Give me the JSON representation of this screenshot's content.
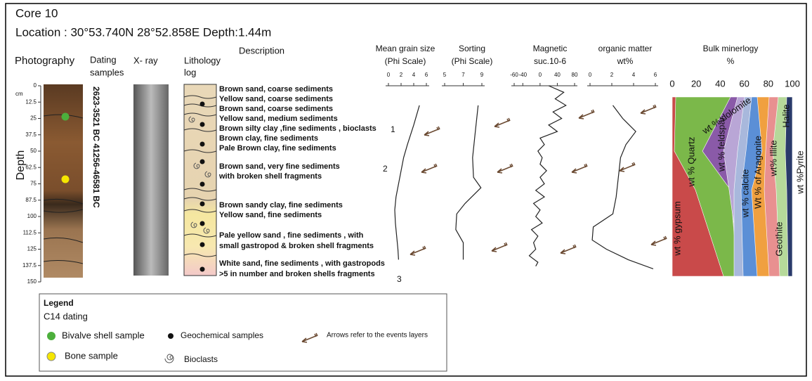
{
  "header": {
    "title": "Core 10",
    "location": "Location : 30°53.740N 28°52.858E  Depth:1.44m"
  },
  "columns": {
    "photography": "Photography",
    "dating": [
      "Dating",
      "samples"
    ],
    "xray": "X- ray",
    "lithology": [
      "Lithology",
      "log"
    ],
    "description": "Description"
  },
  "depth_axis": {
    "label": "Depth",
    "unit": "cm",
    "ticks": [
      0,
      12.5,
      25,
      37.5,
      50,
      62.5,
      75,
      87.5,
      100,
      112.5,
      125,
      137.5,
      150
    ]
  },
  "dating": [
    "2623-3521 BC",
    "41256-46581 BC"
  ],
  "descriptions": [
    "Brown sand, coarse sediments",
    "Yellow sand, coarse sediments",
    "Brown sand, coarse sediments",
    "Yellow sand, medium sediments",
    "Brown silty clay ,fine sediments , bioclasts",
    "Brown clay, fine sediments",
    "Pale Brown clay, fine sediments",
    "Brown sand, very fine sediments",
    "with broken  shell fragments",
    "Brown sandy clay, fine sediments",
    "Yellow sand, fine sediments",
    "Pale yellow sand , fine sediments , with",
    "small gastropod & broken shell fragments",
    "White sand, fine sediments , with gastropods",
    ">5 in number and broken shells fragments"
  ],
  "events": [
    "1",
    "2",
    "3"
  ],
  "panels": [
    {
      "title": [
        "Mean grain size",
        "(Phi Scale)"
      ],
      "ticks": [
        0,
        2,
        4,
        6
      ],
      "xlim": [
        0,
        6
      ],
      "depth": [
        15,
        30,
        45,
        55,
        65,
        75,
        85,
        95,
        105,
        115,
        125,
        133
      ],
      "values": [
        4.9,
        4.0,
        3.0,
        2.4,
        2.0,
        1.6,
        1.2,
        1.0,
        1.1,
        1.3,
        1.5,
        1.6
      ]
    },
    {
      "title": [
        "Sorting",
        "(Phi Scale)"
      ],
      "ticks": [
        5,
        7,
        9
      ],
      "xlim": [
        5,
        9
      ],
      "depth": [
        15,
        35,
        55,
        70,
        78,
        90,
        98,
        110,
        120,
        133
      ],
      "values": [
        8.6,
        8.3,
        8.0,
        8.1,
        8.9,
        7.2,
        6.3,
        6.2,
        7.0,
        7.0
      ]
    },
    {
      "title": [
        "Magnetic",
        "suc.10-6"
      ],
      "ticks": [
        -60,
        -40,
        0,
        40,
        80
      ],
      "xlim": [
        -60,
        80
      ],
      "depth": [
        0,
        5,
        10,
        15,
        20,
        25,
        30,
        35,
        40,
        45,
        50,
        55,
        60,
        65,
        70,
        75,
        80,
        85,
        90,
        95,
        100,
        105,
        110,
        115,
        120,
        125,
        130,
        135,
        138
      ],
      "values": [
        20,
        55,
        35,
        60,
        30,
        50,
        20,
        40,
        0,
        10,
        -5,
        5,
        0,
        15,
        0,
        10,
        -10,
        10,
        -15,
        0,
        -10,
        5,
        -20,
        -5,
        -15,
        -10,
        -25,
        -5,
        -10
      ]
    },
    {
      "title": [
        "organic matter",
        "wt%"
      ],
      "ticks": [
        0,
        2,
        4,
        6
      ],
      "xlim": [
        0,
        6
      ],
      "depth": [
        15,
        25,
        35,
        45,
        55,
        70,
        85,
        98,
        108,
        118,
        125,
        133,
        140
      ],
      "values": [
        2.1,
        3.0,
        4.2,
        3.3,
        2.8,
        2.6,
        2.4,
        2.1,
        0.3,
        0.2,
        1.5,
        3.5,
        5.8
      ]
    }
  ],
  "mineralogy": {
    "title": [
      "Bulk minerlogy",
      "%"
    ],
    "ticks": [
      0,
      20,
      40,
      60,
      80,
      100
    ],
    "labels": [
      "wt % gypsum",
      "wt % Quartz",
      "wt % feldspar",
      "wt % dolomite",
      "wt % calcite",
      "Wt % of Aragonite",
      "wt% Illite",
      "Geothite",
      "Halite",
      "wt %Pyrite"
    ]
  },
  "legend": {
    "title": "Legend",
    "subtitle": "C14 dating",
    "bivalve": "Bivalve shell sample",
    "bone": "Bone sample",
    "geochem": "Geochemical samples",
    "bioclasts": "Bioclasts",
    "arrows": "Arrows refer to the events layers"
  }
}
